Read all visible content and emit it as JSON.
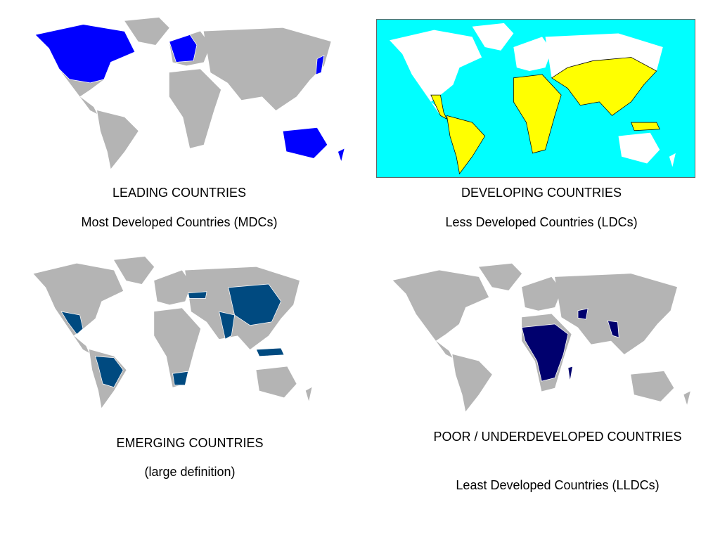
{
  "panels": [
    {
      "title": "LEADING COUNTRIES",
      "subtitle": "Most Developed Countries (MDCs)"
    },
    {
      "title": "DEVELOPING COUNTRIES",
      "subtitle": "Less Developed Countries (LDCs)"
    },
    {
      "title": "EMERGING COUNTRIES",
      "subtitle": "(large definition)"
    },
    {
      "title": "POOR / UNDERDEVELOPED COUNTRIES",
      "subtitle": "Least Developed Countries (LLDCs)"
    }
  ]
}
